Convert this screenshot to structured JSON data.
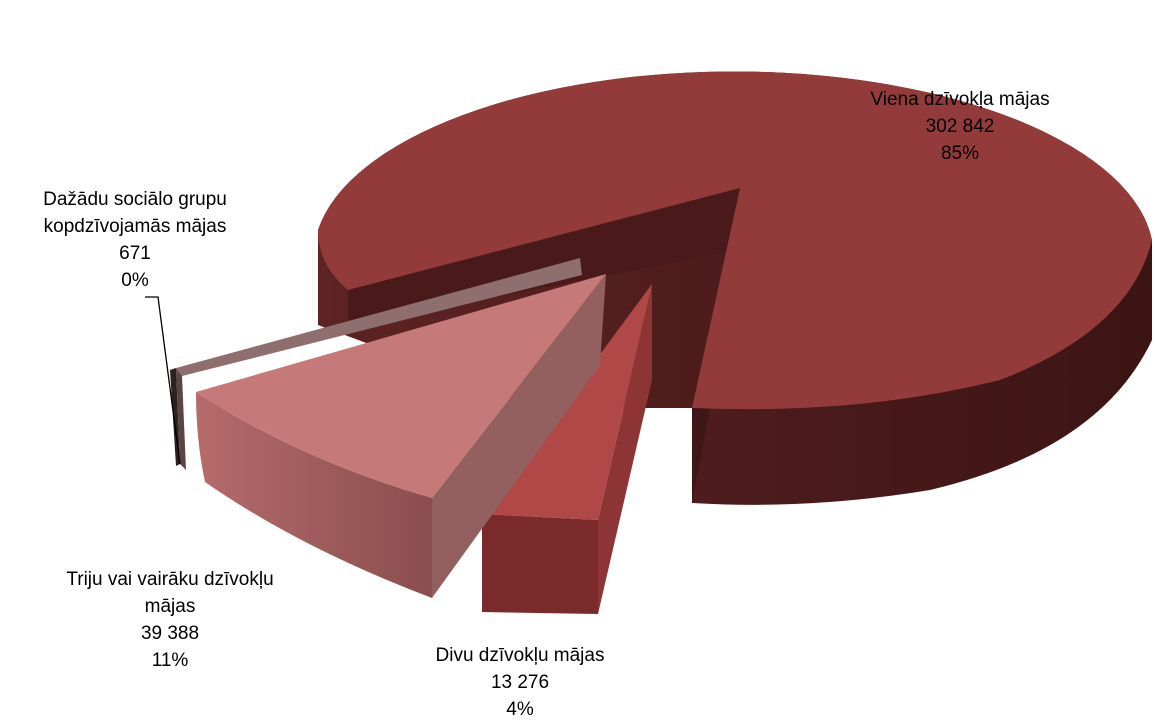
{
  "chart_data": {
    "type": "pie",
    "style": "3d-exploded",
    "slices": [
      {
        "label": "Viena dzīvokļa mājas",
        "value_text": "302 842",
        "value": 302842,
        "percent_text": "85%",
        "color": "#933b3b"
      },
      {
        "label": "Divu dzīvokļu mājas",
        "value_text": "13 276",
        "value": 13276,
        "percent_text": "4%",
        "color": "#b04848"
      },
      {
        "label_lines": [
          "Triju vai vairāku dzīvokļu",
          "mājas"
        ],
        "value_text": "39 388",
        "value": 39388,
        "percent_text": "11%",
        "color": "#c57a79"
      },
      {
        "label_lines": [
          "Dažādu sociālo grupu",
          "kopdzīvojamās mājas"
        ],
        "value_text": "671",
        "value": 671,
        "percent_text": "0%",
        "color": "#8e6e6e"
      }
    ],
    "legend": "none",
    "data_labels": true
  }
}
